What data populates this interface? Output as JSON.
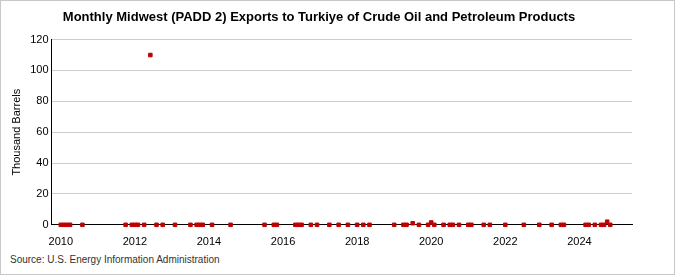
{
  "chart_data": {
    "type": "scatter",
    "title": "Monthly Midwest (PADD 2) Exports to Turkiye of Crude Oil and Petroleum Products",
    "y_label": "Thousand Barrels",
    "source": "Source: U.S. Energy Information Administration",
    "x": [
      2010.0,
      2010.083,
      2010.167,
      2010.25,
      2010.583,
      2011.75,
      2011.917,
      2012.0,
      2012.083,
      2012.25,
      2012.417,
      2012.583,
      2012.75,
      2013.083,
      2013.5,
      2013.667,
      2013.75,
      2013.833,
      2014.083,
      2014.583,
      2015.5,
      2015.75,
      2015.833,
      2016.333,
      2016.417,
      2016.5,
      2016.75,
      2016.917,
      2017.25,
      2017.5,
      2017.75,
      2018.0,
      2018.167,
      2018.333,
      2019.0,
      2019.25,
      2019.333,
      2019.5,
      2019.667,
      2019.917,
      2020.0,
      2020.083,
      2020.333,
      2020.5,
      2020.583,
      2020.75,
      2021.0,
      2021.083,
      2021.417,
      2021.583,
      2022.0,
      2022.5,
      2022.917,
      2023.25,
      2023.5,
      2023.583,
      2024.167,
      2024.25,
      2024.417,
      2024.583,
      2024.667,
      2024.75,
      2024.833
    ],
    "values": [
      0,
      0,
      0,
      0,
      0,
      0,
      0,
      0,
      0,
      0,
      110,
      0,
      0,
      0,
      0,
      0,
      0,
      0,
      0,
      0,
      0,
      0,
      0,
      0,
      0,
      0,
      0,
      0,
      0,
      0,
      0,
      0,
      0,
      0,
      0,
      0,
      0,
      1,
      0,
      0,
      1.5,
      0,
      0,
      0,
      0,
      0,
      0,
      0,
      0,
      0,
      0,
      0,
      0,
      0,
      0,
      0,
      0,
      0,
      0,
      0,
      0,
      2,
      0
    ],
    "color": "#c00000",
    "marker": "square",
    "xlim": [
      2009.75,
      2025.42
    ],
    "xticks": [
      2010,
      2012,
      2014,
      2016,
      2018,
      2020,
      2022,
      2024
    ],
    "ylim": [
      0,
      120
    ],
    "yticks": [
      0,
      20,
      40,
      60,
      80,
      100,
      120
    ],
    "grid": true
  }
}
